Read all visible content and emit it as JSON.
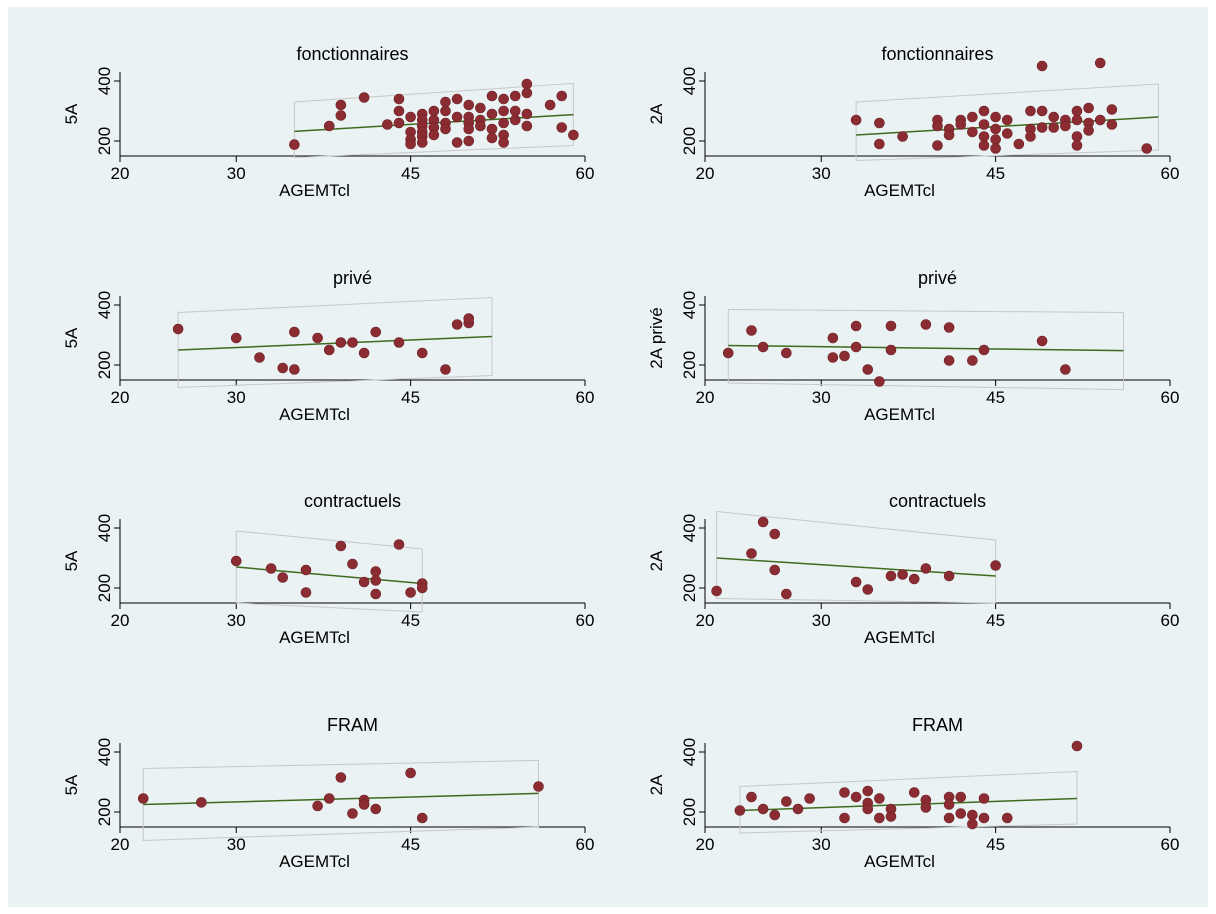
{
  "chart_data": [
    {
      "type": "scatter",
      "title": "fonctionnaires",
      "xlabel": "AGEMTcl",
      "ylabel": "5A",
      "xticks": [
        20,
        30,
        45,
        60
      ],
      "yticks": [
        200,
        400
      ],
      "fit": {
        "x": [
          35,
          59
        ],
        "y": [
          232,
          288
        ]
      },
      "ci": {
        "x": [
          35,
          59
        ],
        "lower": [
          145,
          185
        ],
        "upper": [
          330,
          392
        ]
      },
      "points": [
        [
          35,
          188
        ],
        [
          38,
          250
        ],
        [
          39,
          320
        ],
        [
          39,
          285
        ],
        [
          41,
          345
        ],
        [
          43,
          255
        ],
        [
          44,
          340
        ],
        [
          44,
          300
        ],
        [
          44,
          260
        ],
        [
          45,
          280
        ],
        [
          45,
          230
        ],
        [
          45,
          205
        ],
        [
          45,
          190
        ],
        [
          46,
          290
        ],
        [
          46,
          270
        ],
        [
          46,
          250
        ],
        [
          46,
          230
        ],
        [
          46,
          215
        ],
        [
          46,
          195
        ],
        [
          47,
          300
        ],
        [
          47,
          270
        ],
        [
          47,
          245
        ],
        [
          47,
          220
        ],
        [
          48,
          330
        ],
        [
          48,
          300
        ],
        [
          48,
          260
        ],
        [
          48,
          240
        ],
        [
          49,
          340
        ],
        [
          49,
          280
        ],
        [
          49,
          195
        ],
        [
          50,
          320
        ],
        [
          50,
          280
        ],
        [
          50,
          260
        ],
        [
          50,
          240
        ],
        [
          50,
          200
        ],
        [
          51,
          310
        ],
        [
          51,
          270
        ],
        [
          51,
          250
        ],
        [
          52,
          350
        ],
        [
          52,
          290
        ],
        [
          52,
          240
        ],
        [
          52,
          210
        ],
        [
          53,
          340
        ],
        [
          53,
          300
        ],
        [
          53,
          260
        ],
        [
          53,
          220
        ],
        [
          53,
          195
        ],
        [
          54,
          350
        ],
        [
          54,
          300
        ],
        [
          54,
          270
        ],
        [
          55,
          390
        ],
        [
          55,
          360
        ],
        [
          55,
          290
        ],
        [
          55,
          250
        ],
        [
          57,
          320
        ],
        [
          58,
          350
        ],
        [
          58,
          245
        ],
        [
          59,
          220
        ]
      ]
    },
    {
      "type": "scatter",
      "title": "fonctionnaires",
      "xlabel": "AGEMTcl",
      "ylabel": "2A",
      "xticks": [
        20,
        30,
        45,
        60
      ],
      "yticks": [
        200,
        400
      ],
      "fit": {
        "x": [
          33,
          59
        ],
        "y": [
          220,
          280
        ]
      },
      "ci": {
        "x": [
          33,
          59
        ],
        "lower": [
          135,
          170
        ],
        "upper": [
          330,
          390
        ]
      },
      "points": [
        [
          33,
          270
        ],
        [
          35,
          260
        ],
        [
          35,
          190
        ],
        [
          37,
          215
        ],
        [
          40,
          270
        ],
        [
          40,
          250
        ],
        [
          40,
          185
        ],
        [
          41,
          240
        ],
        [
          41,
          220
        ],
        [
          42,
          270
        ],
        [
          42,
          255
        ],
        [
          43,
          280
        ],
        [
          43,
          230
        ],
        [
          44,
          300
        ],
        [
          44,
          255
        ],
        [
          44,
          215
        ],
        [
          44,
          185
        ],
        [
          45,
          280
        ],
        [
          45,
          240
        ],
        [
          45,
          205
        ],
        [
          45,
          175
        ],
        [
          46,
          270
        ],
        [
          46,
          225
        ],
        [
          47,
          190
        ],
        [
          48,
          300
        ],
        [
          48,
          240
        ],
        [
          48,
          215
        ],
        [
          49,
          450
        ],
        [
          49,
          300
        ],
        [
          49,
          245
        ],
        [
          50,
          280
        ],
        [
          50,
          245
        ],
        [
          51,
          270
        ],
        [
          51,
          250
        ],
        [
          52,
          300
        ],
        [
          52,
          270
        ],
        [
          52,
          215
        ],
        [
          52,
          185
        ],
        [
          53,
          310
        ],
        [
          53,
          260
        ],
        [
          53,
          235
        ],
        [
          54,
          460
        ],
        [
          54,
          270
        ],
        [
          55,
          305
        ],
        [
          55,
          255
        ],
        [
          58,
          175
        ]
      ]
    },
    {
      "type": "scatter",
      "title": "privé",
      "xlabel": "AGEMTcl",
      "ylabel": "5A",
      "xticks": [
        20,
        30,
        45,
        60
      ],
      "yticks": [
        200,
        400
      ],
      "fit": {
        "x": [
          25,
          52
        ],
        "y": [
          250,
          295
        ]
      },
      "ci": {
        "x": [
          25,
          52
        ],
        "lower": [
          125,
          165
        ],
        "upper": [
          375,
          425
        ]
      },
      "points": [
        [
          25,
          320
        ],
        [
          30,
          290
        ],
        [
          32,
          225
        ],
        [
          34,
          190
        ],
        [
          35,
          310
        ],
        [
          35,
          185
        ],
        [
          37,
          290
        ],
        [
          38,
          250
        ],
        [
          39,
          275
        ],
        [
          40,
          275
        ],
        [
          41,
          240
        ],
        [
          42,
          310
        ],
        [
          44,
          275
        ],
        [
          46,
          240
        ],
        [
          48,
          185
        ],
        [
          49,
          335
        ],
        [
          50,
          340
        ],
        [
          50,
          355
        ]
      ]
    },
    {
      "type": "scatter",
      "title": "privé",
      "xlabel": "AGEMTcl",
      "ylabel": "2A privé",
      "xticks": [
        20,
        30,
        45,
        60
      ],
      "yticks": [
        200,
        400
      ],
      "fit": {
        "x": [
          22,
          56
        ],
        "y": [
          265,
          248
        ]
      },
      "ci": {
        "x": [
          22,
          56
        ],
        "lower": [
          140,
          118
        ],
        "upper": [
          385,
          375
        ]
      },
      "points": [
        [
          22,
          240
        ],
        [
          24,
          315
        ],
        [
          25,
          260
        ],
        [
          27,
          240
        ],
        [
          31,
          290
        ],
        [
          31,
          225
        ],
        [
          32,
          230
        ],
        [
          33,
          330
        ],
        [
          33,
          260
        ],
        [
          34,
          185
        ],
        [
          35,
          145
        ],
        [
          36,
          330
        ],
        [
          36,
          250
        ],
        [
          39,
          335
        ],
        [
          41,
          325
        ],
        [
          41,
          215
        ],
        [
          43,
          215
        ],
        [
          44,
          250
        ],
        [
          49,
          280
        ],
        [
          51,
          185
        ]
      ]
    },
    {
      "type": "scatter",
      "title": "contractuels",
      "xlabel": "AGEMTcl",
      "ylabel": "5A",
      "xticks": [
        20,
        30,
        45,
        60
      ],
      "yticks": [
        200,
        400
      ],
      "fit": {
        "x": [
          30,
          46
        ],
        "y": [
          270,
          215
        ]
      },
      "ci": {
        "x": [
          30,
          46
        ],
        "lower": [
          150,
          120
        ],
        "upper": [
          390,
          330
        ]
      },
      "points": [
        [
          30,
          290
        ],
        [
          33,
          265
        ],
        [
          34,
          235
        ],
        [
          36,
          260
        ],
        [
          36,
          185
        ],
        [
          39,
          340
        ],
        [
          40,
          280
        ],
        [
          41,
          220
        ],
        [
          42,
          255
        ],
        [
          42,
          225
        ],
        [
          42,
          180
        ],
        [
          44,
          345
        ],
        [
          45,
          185
        ],
        [
          46,
          215
        ],
        [
          46,
          200
        ]
      ]
    },
    {
      "type": "scatter",
      "title": "contractuels",
      "xlabel": "AGEMTcl",
      "ylabel": "2A",
      "xticks": [
        20,
        30,
        45,
        60
      ],
      "yticks": [
        200,
        400
      ],
      "fit": {
        "x": [
          21,
          45
        ],
        "y": [
          300,
          240
        ]
      },
      "ci": {
        "x": [
          21,
          45
        ],
        "lower": [
          165,
          150
        ],
        "upper": [
          455,
          360
        ]
      },
      "points": [
        [
          21,
          190
        ],
        [
          24,
          315
        ],
        [
          25,
          420
        ],
        [
          26,
          380
        ],
        [
          26,
          260
        ],
        [
          27,
          180
        ],
        [
          33,
          220
        ],
        [
          34,
          195
        ],
        [
          36,
          240
        ],
        [
          37,
          245
        ],
        [
          38,
          230
        ],
        [
          39,
          265
        ],
        [
          41,
          240
        ],
        [
          45,
          275
        ]
      ]
    },
    {
      "type": "scatter",
      "title": "FRAM",
      "xlabel": "AGEMTcl",
      "ylabel": "5A",
      "xticks": [
        20,
        30,
        45,
        60
      ],
      "yticks": [
        200,
        400
      ],
      "fit": {
        "x": [
          22,
          56
        ],
        "y": [
          225,
          262
        ]
      },
      "ci": {
        "x": [
          22,
          56
        ],
        "lower": [
          105,
          150
        ],
        "upper": [
          345,
          372
        ]
      },
      "points": [
        [
          22,
          245
        ],
        [
          27,
          232
        ],
        [
          37,
          220
        ],
        [
          38,
          245
        ],
        [
          39,
          315
        ],
        [
          40,
          195
        ],
        [
          41,
          240
        ],
        [
          41,
          225
        ],
        [
          42,
          210
        ],
        [
          45,
          330
        ],
        [
          46,
          180
        ],
        [
          56,
          285
        ]
      ]
    },
    {
      "type": "scatter",
      "title": "FRAM",
      "xlabel": "AGEMTcl",
      "ylabel": "2A",
      "xticks": [
        20,
        30,
        45,
        60
      ],
      "yticks": [
        200,
        400
      ],
      "fit": {
        "x": [
          23,
          52
        ],
        "y": [
          205,
          245
        ]
      },
      "ci": {
        "x": [
          23,
          52
        ],
        "lower": [
          130,
          160
        ],
        "upper": [
          285,
          335
        ]
      },
      "points": [
        [
          23,
          205
        ],
        [
          24,
          250
        ],
        [
          25,
          210
        ],
        [
          26,
          190
        ],
        [
          27,
          235
        ],
        [
          28,
          210
        ],
        [
          29,
          245
        ],
        [
          32,
          265
        ],
        [
          32,
          180
        ],
        [
          33,
          250
        ],
        [
          34,
          270
        ],
        [
          34,
          230
        ],
        [
          34,
          210
        ],
        [
          35,
          245
        ],
        [
          35,
          180
        ],
        [
          36,
          210
        ],
        [
          36,
          185
        ],
        [
          38,
          265
        ],
        [
          39,
          240
        ],
        [
          39,
          215
        ],
        [
          41,
          250
        ],
        [
          41,
          225
        ],
        [
          41,
          180
        ],
        [
          42,
          250
        ],
        [
          42,
          195
        ],
        [
          43,
          190
        ],
        [
          43,
          160
        ],
        [
          44,
          245
        ],
        [
          44,
          180
        ],
        [
          46,
          180
        ],
        [
          52,
          420
        ]
      ]
    }
  ]
}
